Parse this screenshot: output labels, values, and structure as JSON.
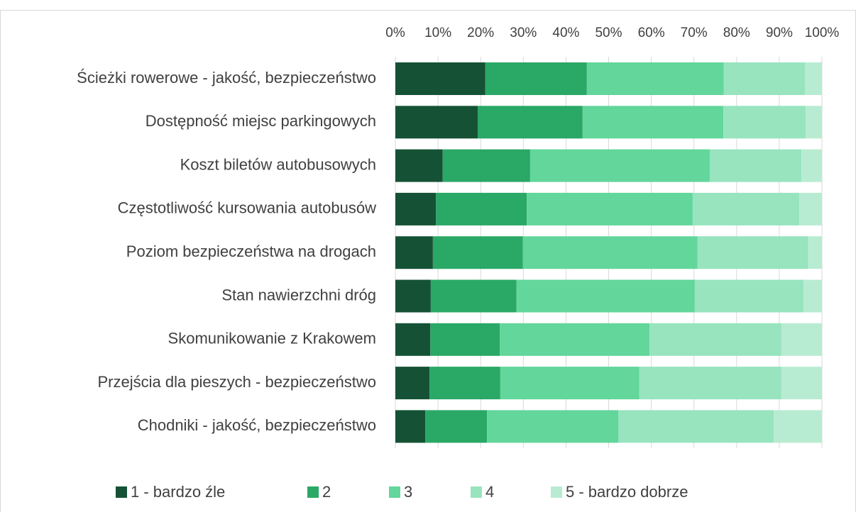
{
  "chart_data": {
    "type": "stacked-bar-horizontal",
    "categories": [
      "Ścieżki rowerowe - jakość, bezpieczeństwo",
      "Dostępność miejsc parkingowych",
      "Koszt biletów autobusowych",
      "Częstotliwość kursowania autobusów",
      "Poziom bezpieczeństwa na drogach",
      "Stan nawierzchni dróg",
      "Skomunikowanie z Krakowem",
      "Przejścia dla pieszych - bezpieczeństwo",
      "Chodniki - jakość, bezpieczeństwo"
    ],
    "series": [
      {
        "name": "1 - bardzo źle",
        "color": "#155235",
        "values": [
          21.1,
          19.3,
          11.1,
          9.5,
          8.8,
          8.3,
          8.2,
          8.0,
          7.0
        ]
      },
      {
        "name": "2",
        "color": "#2aa866",
        "values": [
          23.8,
          24.6,
          20.5,
          21.3,
          21.1,
          20.1,
          16.3,
          16.6,
          14.5
        ]
      },
      {
        "name": "3",
        "color": "#62d69b",
        "values": [
          32.1,
          33.0,
          42.1,
          38.9,
          40.9,
          41.8,
          35.1,
          32.6,
          30.8
        ]
      },
      {
        "name": "4",
        "color": "#97e4bf",
        "values": [
          19.0,
          19.3,
          21.5,
          25.0,
          26.0,
          25.5,
          30.9,
          33.3,
          36.4
        ]
      },
      {
        "name": "5 - bardzo dobrze",
        "color": "#b8ecd2",
        "values": [
          4.0,
          3.8,
          4.8,
          5.3,
          3.2,
          4.3,
          9.5,
          9.5,
          11.3
        ]
      }
    ],
    "xlim": [
      0,
      100
    ],
    "xticks": [
      {
        "value": 0,
        "label": "0%"
      },
      {
        "value": 10,
        "label": "10%"
      },
      {
        "value": 20,
        "label": "20%"
      },
      {
        "value": 30,
        "label": "30%"
      },
      {
        "value": 40,
        "label": "40%"
      },
      {
        "value": 50,
        "label": "50%"
      },
      {
        "value": 60,
        "label": "60%"
      },
      {
        "value": 70,
        "label": "70%"
      },
      {
        "value": 80,
        "label": "80%"
      },
      {
        "value": 90,
        "label": "90%"
      },
      {
        "value": 100,
        "label": "100%"
      }
    ],
    "grid": true,
    "legend": "bottom"
  }
}
